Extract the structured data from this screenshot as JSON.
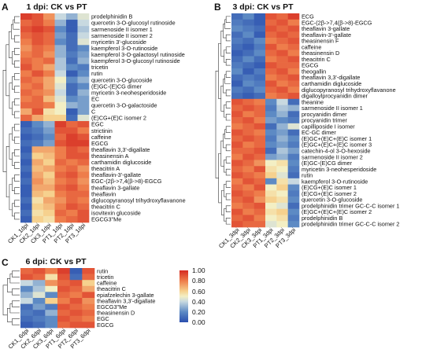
{
  "colorbar": {
    "stops": [
      {
        "v": 0.0,
        "c": "#2a4fae"
      },
      {
        "v": 0.2,
        "c": "#5d8ac4"
      },
      {
        "v": 0.4,
        "c": "#c8d9e0"
      },
      {
        "v": 0.5,
        "c": "#f3efc4"
      },
      {
        "v": 0.6,
        "c": "#f6d18e"
      },
      {
        "v": 0.8,
        "c": "#ee7d4b"
      },
      {
        "v": 1.0,
        "c": "#d52a22"
      }
    ],
    "ticks": [
      "1.00",
      "0.80",
      "0.60",
      "0.40",
      "0.20",
      "0.00"
    ]
  },
  "chart_data": [
    {
      "type": "heatmap",
      "panel_letter": "A",
      "title": "1 dpi: CK vs PT",
      "columns": [
        "CK1_1dpi",
        "CK2_1dpi",
        "CK3_1dpi",
        "PT1_1dpi",
        "PT2_1dpi",
        "PT3_1dpi"
      ],
      "rows": [
        "prodelphinidin B",
        "quercetin 3-O-glucosyl rutinoside",
        "sarmenoside II isomer 1",
        "sarmenoside II isomer 2",
        "myricetin 3'-glucoside",
        "kaempferol 3-O-rutinoside",
        "kaempferol 3-O-galactosyl rutinoside",
        "kaempferol 3-O-glucosyl rutinoside",
        "tricetin",
        "rutin",
        "quercetin 3-O-glucoside",
        "(E)GC-(E)CG dimer",
        "myricetin 3-neohesperidoside",
        "EC",
        "quercetin 3-O-galactoside",
        "C",
        "(E)CG+(E)C isomer 2",
        "EGC",
        "strictinin",
        "caffeine",
        "EGCG",
        "theaflavin 3,3'-digallate",
        "theasinensin A",
        "carthamidin diglucoside",
        "theacitrin A",
        "theaflavin-3'-gallate",
        "EGC-(2β->7,4(β->8)-EGCG",
        "theaflavin 3-gallate",
        "theaflavin",
        "diglucopyranosyl trihydroxyflavanone",
        "theacitrin C",
        "isovitexin glucoside",
        "EGCG3\"Me"
      ],
      "values": [
        [
          0.95,
          0.9,
          0.75,
          0.4,
          0.3,
          0.45
        ],
        [
          0.85,
          0.9,
          0.8,
          0.3,
          0.05,
          0.4
        ],
        [
          0.9,
          0.95,
          0.9,
          0.2,
          0.05,
          0.35
        ],
        [
          0.85,
          0.9,
          0.85,
          0.25,
          0.1,
          0.4
        ],
        [
          0.8,
          0.9,
          0.85,
          0.2,
          0.1,
          0.45
        ],
        [
          0.75,
          0.85,
          0.8,
          0.3,
          0.1,
          0.2
        ],
        [
          0.8,
          0.85,
          0.75,
          0.3,
          0.15,
          0.25
        ],
        [
          0.85,
          0.8,
          0.85,
          0.35,
          0.1,
          0.3
        ],
        [
          0.9,
          0.8,
          0.7,
          0.35,
          0.2,
          0.15
        ],
        [
          0.8,
          0.9,
          0.8,
          0.4,
          0.05,
          0.2
        ],
        [
          0.85,
          0.8,
          0.7,
          0.5,
          0.2,
          0.3
        ],
        [
          0.8,
          0.85,
          0.7,
          0.45,
          0.1,
          0.2
        ],
        [
          0.85,
          0.8,
          0.75,
          0.4,
          0.1,
          0.3
        ],
        [
          0.8,
          0.85,
          0.65,
          0.45,
          0.2,
          0.25
        ],
        [
          0.85,
          0.85,
          0.8,
          0.5,
          0.3,
          0.25
        ],
        [
          0.7,
          0.9,
          0.55,
          0.5,
          0.05,
          0.25
        ],
        [
          0.85,
          0.7,
          0.6,
          0.6,
          0.1,
          0.45
        ],
        [
          0.05,
          0.2,
          0.3,
          0.95,
          0.85,
          0.9
        ],
        [
          0.1,
          0.15,
          0.25,
          0.9,
          0.9,
          0.8
        ],
        [
          0.05,
          0.1,
          0.2,
          0.85,
          0.95,
          0.9
        ],
        [
          0.1,
          0.15,
          0.25,
          0.9,
          0.95,
          0.95
        ],
        [
          0.05,
          0.7,
          0.7,
          0.8,
          0.9,
          0.85
        ],
        [
          0.1,
          0.6,
          0.65,
          0.8,
          0.9,
          0.9
        ],
        [
          0.05,
          0.7,
          0.6,
          0.85,
          0.8,
          0.85
        ],
        [
          0.1,
          0.65,
          0.7,
          0.8,
          0.85,
          0.75
        ],
        [
          0.05,
          0.7,
          0.6,
          0.85,
          0.9,
          0.8
        ],
        [
          0.1,
          0.75,
          0.65,
          0.8,
          0.85,
          0.75
        ],
        [
          0.05,
          0.7,
          0.7,
          0.85,
          0.9,
          0.8
        ],
        [
          0.05,
          0.65,
          0.6,
          0.8,
          0.85,
          0.85
        ],
        [
          0.1,
          0.55,
          0.7,
          0.75,
          0.85,
          0.8
        ],
        [
          0.05,
          0.6,
          0.65,
          0.8,
          0.9,
          0.85
        ],
        [
          0.1,
          0.55,
          0.6,
          0.85,
          0.8,
          0.9
        ],
        [
          0.05,
          0.6,
          0.55,
          0.8,
          0.85,
          0.9
        ]
      ]
    },
    {
      "type": "heatmap",
      "panel_letter": "B",
      "title": "3 dpi: CK vs PT",
      "columns": [
        "CK1_3dpi",
        "CK2_3dpi",
        "CK3_3dpi",
        "PT1_3dpi",
        "PT2_3dpi",
        "PT3_3dpi"
      ],
      "rows": [
        "ECG",
        "EGC-(2β->7,4(β->8)-EGCG",
        "theaflavin 3-gallate",
        "theaflavin-3'-gallate",
        "theasinensin F",
        "caffeine",
        "theasinensin D",
        "theacitrin C",
        "EGCG",
        "theogallin",
        "theaflavin 3,3'-digallate",
        "carthamidin diglucoside",
        "diglucopyranosyl trihydroxyflavanone",
        "digalloylprocyanidin dimer",
        "theanine",
        "sarmenoside II isomer 1",
        "procyanidin dimer",
        "procyanidin trimer",
        "capilliposide I isomer",
        "EC-GC dimer",
        "(E)GC+(E)C+(E)C isomer 1",
        "(E)GC+(E)C+(E)C isomer 3",
        "catechin-4-ol 3-O-hexoside",
        "sarmenoside II isomer 2",
        "(E)GC-(E)CG dimer",
        "myricetin 3-neohesperidoside",
        "rutin",
        "kaempferol 3-O-rutinoside",
        "(E)CG+(E)C isomer 1",
        "(E)CG+(E)C isomer 2",
        "quercetin 3-O-glucoside",
        "prodelphinidin trimer GC-C-C isomer 1",
        "(E)GC+(E)C+(E)C isomer 2",
        "prodelphinidin B",
        "prodelphinidin trimer GC-C-C isomer 2"
      ],
      "values": [
        [
          0.1,
          0.2,
          0.05,
          0.9,
          0.85,
          0.95
        ],
        [
          0.15,
          0.1,
          0.05,
          0.85,
          0.9,
          0.8
        ],
        [
          0.2,
          0.15,
          0.1,
          0.9,
          0.85,
          0.9
        ],
        [
          0.1,
          0.2,
          0.05,
          0.85,
          0.9,
          0.85
        ],
        [
          0.15,
          0.1,
          0.2,
          0.8,
          0.85,
          0.9
        ],
        [
          0.1,
          0.05,
          0.15,
          0.9,
          0.8,
          0.85
        ],
        [
          0.05,
          0.1,
          0.2,
          0.85,
          0.9,
          0.8
        ],
        [
          0.1,
          0.2,
          0.1,
          0.8,
          0.85,
          0.9
        ],
        [
          0.15,
          0.1,
          0.05,
          0.9,
          0.85,
          0.85
        ],
        [
          0.2,
          0.05,
          0.15,
          0.85,
          0.9,
          0.8
        ],
        [
          0.1,
          0.15,
          0.1,
          0.8,
          0.85,
          0.9
        ],
        [
          0.05,
          0.2,
          0.15,
          0.9,
          0.8,
          0.85
        ],
        [
          0.15,
          0.1,
          0.2,
          0.85,
          0.9,
          0.8
        ],
        [
          0.1,
          0.05,
          0.1,
          0.8,
          0.85,
          0.9
        ],
        [
          0.9,
          0.85,
          0.8,
          0.2,
          0.4,
          0.1
        ],
        [
          0.85,
          0.9,
          0.85,
          0.15,
          0.35,
          0.3
        ],
        [
          0.9,
          0.8,
          0.85,
          0.2,
          0.3,
          0.1
        ],
        [
          0.85,
          0.9,
          0.8,
          0.25,
          0.2,
          0.15
        ],
        [
          0.8,
          0.85,
          0.9,
          0.1,
          0.3,
          0.45
        ],
        [
          0.9,
          0.85,
          0.8,
          0.2,
          0.25,
          0.1
        ],
        [
          0.85,
          0.9,
          0.85,
          0.15,
          0.3,
          0.2
        ],
        [
          0.9,
          0.8,
          0.85,
          0.2,
          0.25,
          0.15
        ],
        [
          0.85,
          0.85,
          0.9,
          0.1,
          0.35,
          0.25
        ],
        [
          0.8,
          0.9,
          0.85,
          0.25,
          0.3,
          0.15
        ],
        [
          0.9,
          0.85,
          0.75,
          0.5,
          0.55,
          0.2
        ],
        [
          0.85,
          0.8,
          0.9,
          0.55,
          0.5,
          0.15
        ],
        [
          0.9,
          0.85,
          0.8,
          0.6,
          0.45,
          0.1
        ],
        [
          0.8,
          0.9,
          0.85,
          0.2,
          0.55,
          0.4
        ],
        [
          0.85,
          0.8,
          0.9,
          0.5,
          0.6,
          0.2
        ],
        [
          0.9,
          0.85,
          0.8,
          0.55,
          0.5,
          0.15
        ],
        [
          0.85,
          0.9,
          0.75,
          0.6,
          0.55,
          0.2
        ],
        [
          0.8,
          0.85,
          0.9,
          0.5,
          0.45,
          0.1
        ],
        [
          0.9,
          0.8,
          0.85,
          0.55,
          0.6,
          0.2
        ],
        [
          0.85,
          0.9,
          0.8,
          0.5,
          0.55,
          0.15
        ],
        [
          0.9,
          0.85,
          0.85,
          0.45,
          0.5,
          0.2
        ]
      ]
    },
    {
      "type": "heatmap",
      "panel_letter": "C",
      "title": "6 dpi: CK vs PT",
      "columns": [
        "CK1_6dpi",
        "CK2_6dpi",
        "CK3_6dpi",
        "PT1_6dpi",
        "PT2_6dpi",
        "PT3_6dpi"
      ],
      "rows": [
        "rutin",
        "tricetin",
        "caffeine",
        "theacitrin C",
        "epiafzelechin 3-gallate",
        "theaflavin 3,3'-digallate",
        "EGCG3\"Me",
        "theasinensin D",
        "EGC",
        "EGCG"
      ],
      "values": [
        [
          0.85,
          0.9,
          0.8,
          0.95,
          0.05,
          0.9
        ],
        [
          0.9,
          0.85,
          0.55,
          0.9,
          0.1,
          0.85
        ],
        [
          0.4,
          0.3,
          0.75,
          0.85,
          0.9,
          0.6
        ],
        [
          0.2,
          0.35,
          0.5,
          0.9,
          0.85,
          0.7
        ],
        [
          0.3,
          0.45,
          0.2,
          0.85,
          0.8,
          0.9
        ],
        [
          0.4,
          0.2,
          0.6,
          0.8,
          0.9,
          0.75
        ],
        [
          0.1,
          0.25,
          0.15,
          0.9,
          0.85,
          0.8
        ],
        [
          0.15,
          0.1,
          0.3,
          0.85,
          0.9,
          0.85
        ],
        [
          0.1,
          0.15,
          0.2,
          0.9,
          0.85,
          0.8
        ],
        [
          0.05,
          0.1,
          0.2,
          0.85,
          0.9,
          0.9
        ]
      ]
    }
  ]
}
